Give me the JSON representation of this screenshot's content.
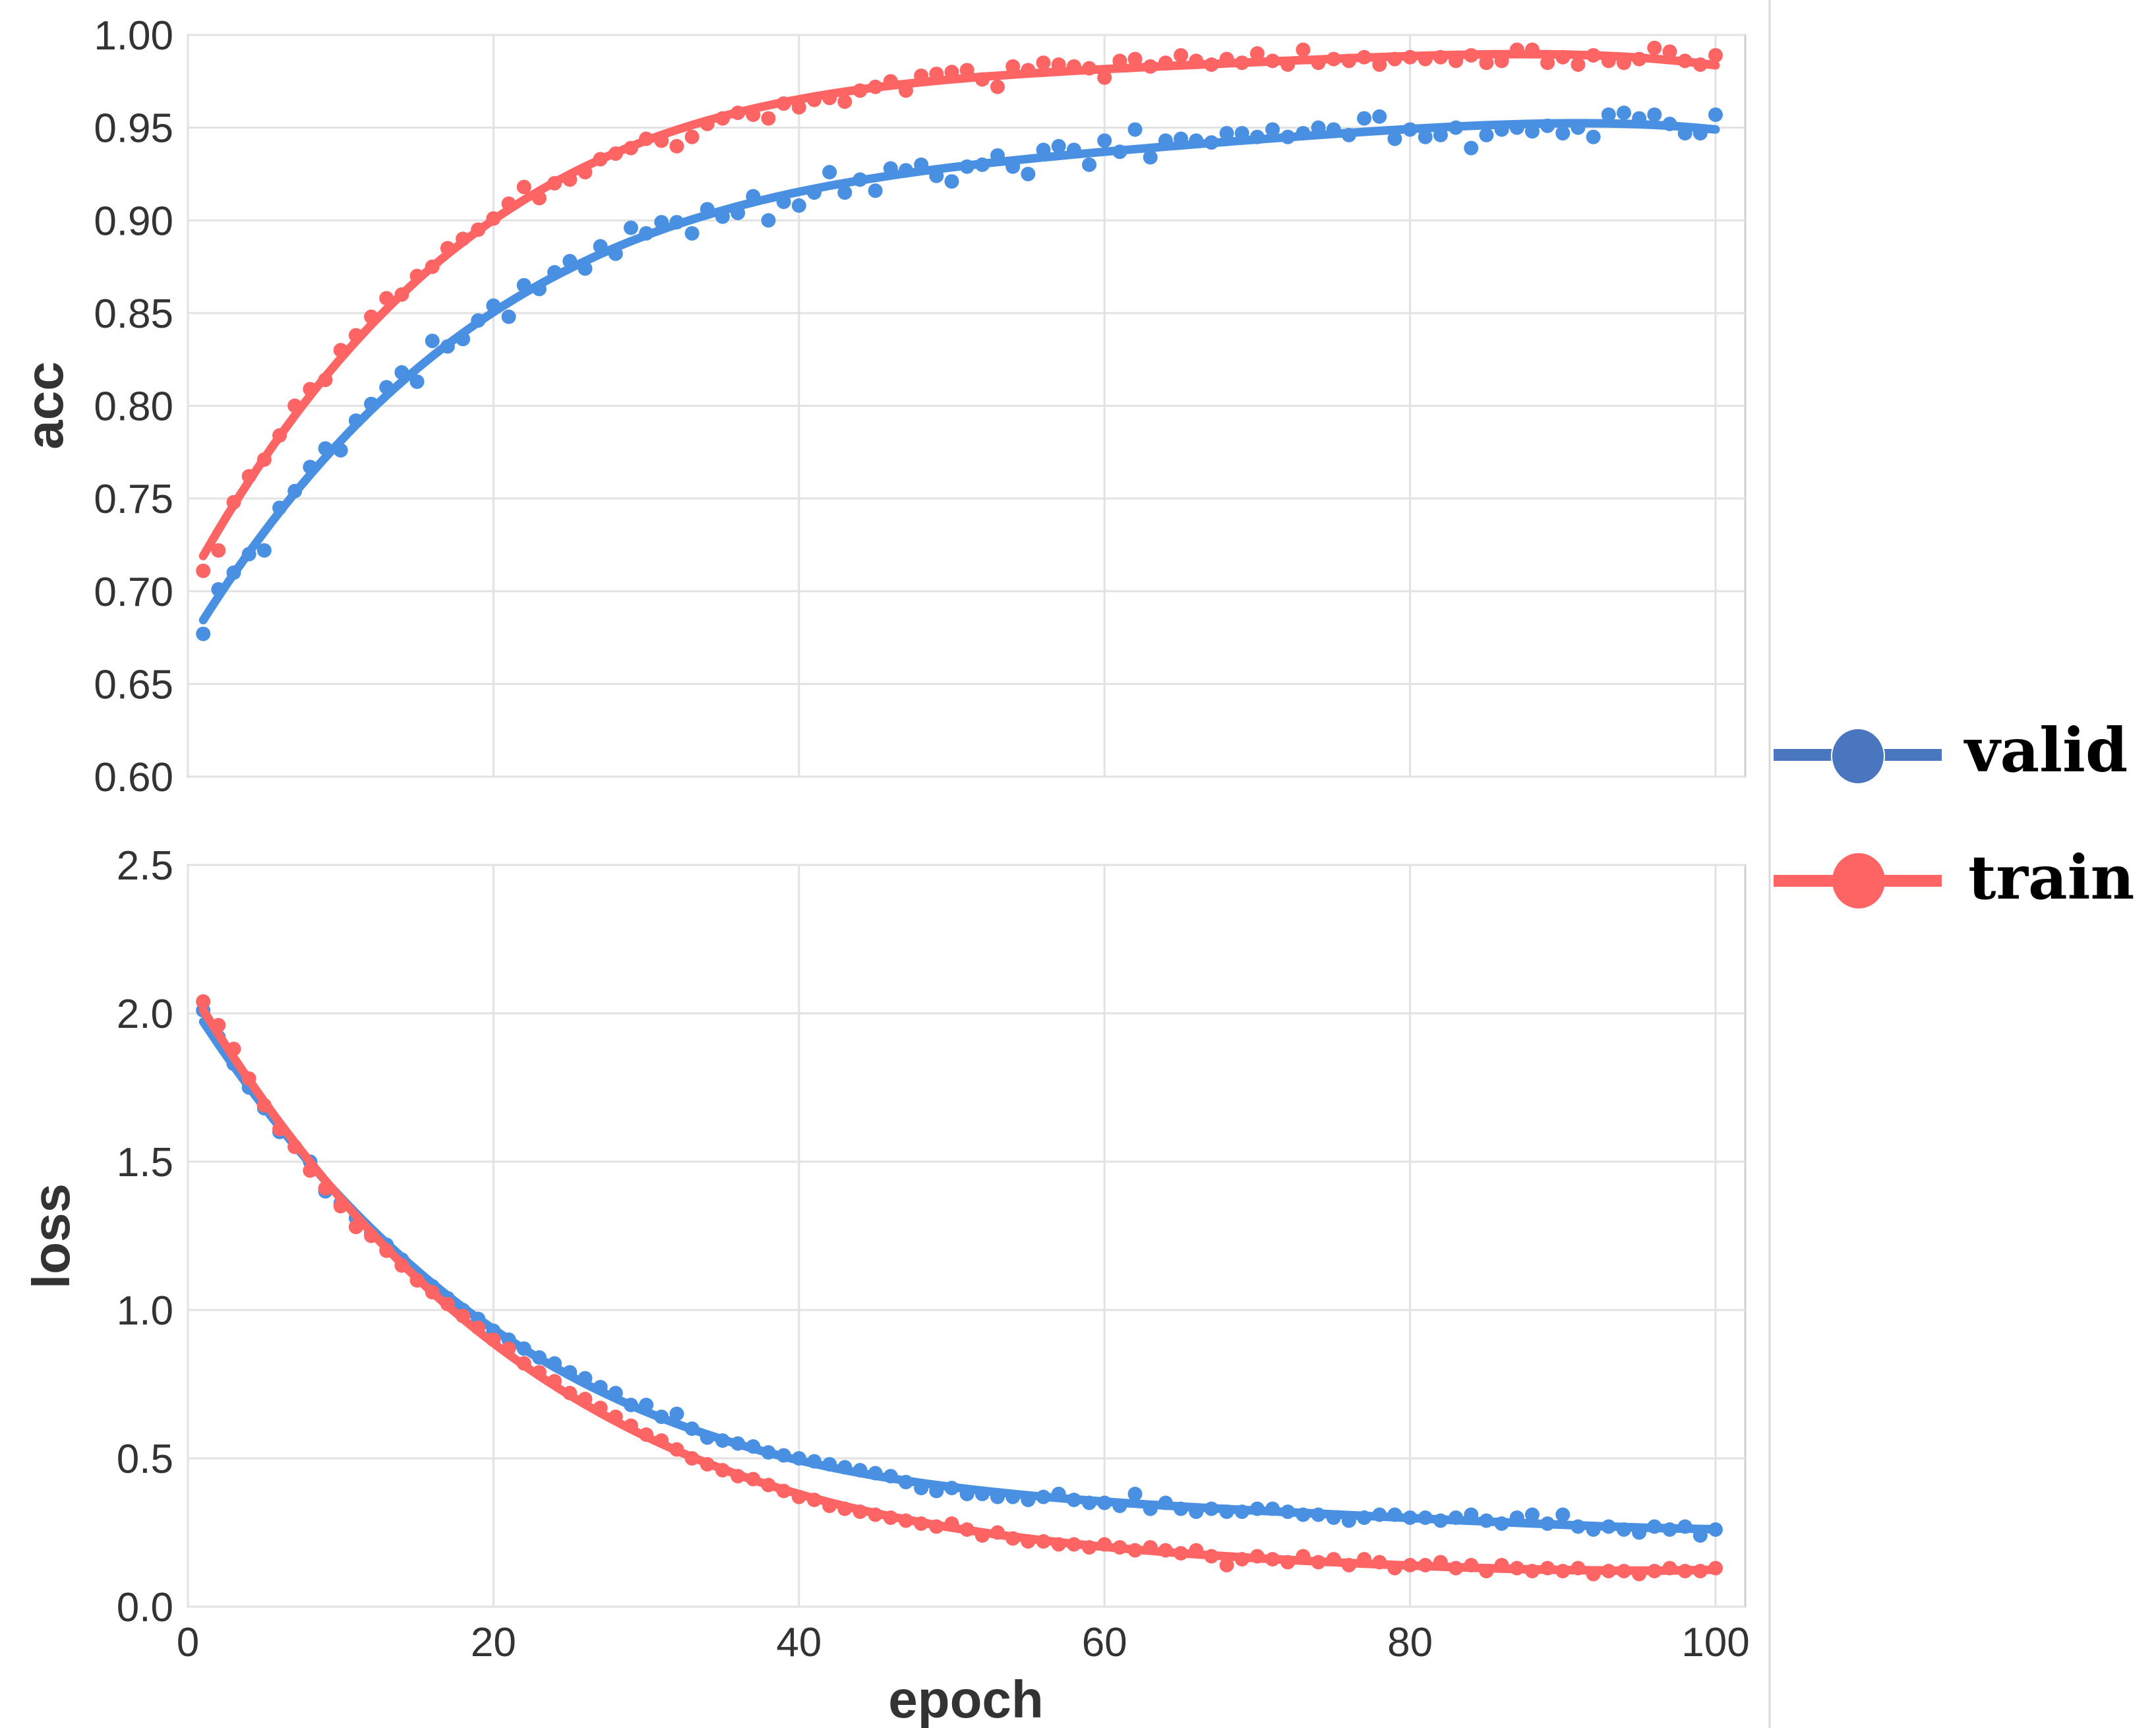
{
  "chart_data": [
    {
      "type": "scatter",
      "panel": "top",
      "title": "",
      "xlabel": "",
      "ylabel": "acc",
      "xlim": [
        0,
        100
      ],
      "ylim": [
        0.6,
        1.0
      ],
      "xticks": [
        "0",
        "20",
        "40",
        "60",
        "80",
        "100"
      ],
      "yticks": [
        "0.60",
        "0.65",
        "0.70",
        "0.75",
        "0.80",
        "0.85",
        "0.90",
        "0.95",
        "1.00"
      ],
      "grid": true,
      "trendline": "polynomial fit per series",
      "series": [
        {
          "name": "valid",
          "color": "#4a90e2",
          "values": [
            0.677,
            0.701,
            0.71,
            0.72,
            0.722,
            0.745,
            0.754,
            0.767,
            0.777,
            0.776,
            0.792,
            0.801,
            0.81,
            0.818,
            0.813,
            0.835,
            0.832,
            0.836,
            0.846,
            0.854,
            0.848,
            0.865,
            0.863,
            0.872,
            0.878,
            0.874,
            0.886,
            0.882,
            0.896,
            0.893,
            0.899,
            0.899,
            0.893,
            0.906,
            0.902,
            0.904,
            0.913,
            0.9,
            0.91,
            0.908,
            0.915,
            0.926,
            0.915,
            0.922,
            0.916,
            0.928,
            0.927,
            0.93,
            0.924,
            0.921,
            0.929,
            0.93,
            0.935,
            0.929,
            0.925,
            0.938,
            0.94,
            0.938,
            0.93,
            0.943,
            0.937,
            0.949,
            0.934,
            0.943,
            0.944,
            0.943,
            0.942,
            0.947,
            0.947,
            0.945,
            0.949,
            0.945,
            0.947,
            0.95,
            0.949,
            0.946,
            0.955,
            0.956,
            0.944,
            0.949,
            0.945,
            0.946,
            0.95,
            0.939,
            0.946,
            0.949,
            0.95,
            0.948,
            0.951,
            0.947,
            0.95,
            0.945,
            0.957,
            0.958,
            0.955,
            0.957,
            0.952,
            0.947,
            0.947,
            0.957
          ]
        },
        {
          "name": "train",
          "color": "#fd6464",
          "values": [
            0.711,
            0.722,
            0.748,
            0.762,
            0.771,
            0.784,
            0.8,
            0.809,
            0.814,
            0.83,
            0.838,
            0.848,
            0.858,
            0.86,
            0.87,
            0.875,
            0.885,
            0.89,
            0.895,
            0.901,
            0.909,
            0.918,
            0.912,
            0.92,
            0.922,
            0.926,
            0.933,
            0.936,
            0.939,
            0.944,
            0.943,
            0.94,
            0.945,
            0.952,
            0.955,
            0.958,
            0.957,
            0.955,
            0.963,
            0.961,
            0.965,
            0.966,
            0.964,
            0.97,
            0.972,
            0.975,
            0.97,
            0.978,
            0.979,
            0.98,
            0.981,
            0.976,
            0.972,
            0.983,
            0.981,
            0.985,
            0.984,
            0.983,
            0.982,
            0.977,
            0.986,
            0.987,
            0.983,
            0.985,
            0.989,
            0.986,
            0.984,
            0.987,
            0.985,
            0.99,
            0.986,
            0.984,
            0.992,
            0.985,
            0.987,
            0.986,
            0.988,
            0.984,
            0.987,
            0.988,
            0.987,
            0.988,
            0.986,
            0.989,
            0.985,
            0.986,
            0.992,
            0.992,
            0.985,
            0.988,
            0.984,
            0.989,
            0.986,
            0.985,
            0.987,
            0.993,
            0.991,
            0.986,
            0.984,
            0.989
          ]
        }
      ]
    },
    {
      "type": "scatter",
      "panel": "bottom",
      "title": "",
      "xlabel": "epoch",
      "ylabel": "loss",
      "xlim": [
        0,
        100
      ],
      "ylim": [
        0.0,
        2.5
      ],
      "xticks": [
        "0",
        "20",
        "40",
        "60",
        "80",
        "100"
      ],
      "yticks": [
        "0.0",
        "0.5",
        "1.0",
        "1.5",
        "2.0",
        "2.5"
      ],
      "grid": true,
      "trendline": "polynomial fit per series",
      "series": [
        {
          "name": "valid",
          "color": "#4a90e2",
          "values": [
            2.01,
            1.92,
            1.83,
            1.75,
            1.68,
            1.6,
            1.55,
            1.5,
            1.4,
            1.36,
            1.31,
            1.26,
            1.22,
            1.17,
            1.12,
            1.08,
            1.04,
            1.0,
            0.97,
            0.93,
            0.9,
            0.87,
            0.84,
            0.82,
            0.79,
            0.77,
            0.74,
            0.72,
            0.68,
            0.68,
            0.64,
            0.65,
            0.6,
            0.57,
            0.56,
            0.55,
            0.54,
            0.52,
            0.51,
            0.5,
            0.49,
            0.48,
            0.47,
            0.46,
            0.45,
            0.44,
            0.42,
            0.4,
            0.39,
            0.4,
            0.38,
            0.38,
            0.37,
            0.37,
            0.36,
            0.37,
            0.38,
            0.36,
            0.35,
            0.35,
            0.34,
            0.38,
            0.33,
            0.35,
            0.33,
            0.32,
            0.33,
            0.32,
            0.32,
            0.33,
            0.33,
            0.32,
            0.31,
            0.31,
            0.3,
            0.29,
            0.3,
            0.31,
            0.31,
            0.3,
            0.3,
            0.29,
            0.3,
            0.31,
            0.29,
            0.28,
            0.3,
            0.31,
            0.28,
            0.31,
            0.27,
            0.26,
            0.27,
            0.26,
            0.25,
            0.27,
            0.26,
            0.27,
            0.24,
            0.26
          ]
        },
        {
          "name": "train",
          "color": "#fd6464",
          "values": [
            2.04,
            1.96,
            1.88,
            1.78,
            1.69,
            1.61,
            1.55,
            1.47,
            1.41,
            1.35,
            1.28,
            1.25,
            1.2,
            1.15,
            1.1,
            1.06,
            1.02,
            0.98,
            0.94,
            0.9,
            0.87,
            0.82,
            0.79,
            0.76,
            0.72,
            0.7,
            0.67,
            0.64,
            0.61,
            0.58,
            0.56,
            0.53,
            0.5,
            0.48,
            0.46,
            0.44,
            0.43,
            0.41,
            0.39,
            0.37,
            0.36,
            0.34,
            0.33,
            0.32,
            0.31,
            0.3,
            0.29,
            0.28,
            0.27,
            0.28,
            0.26,
            0.24,
            0.25,
            0.23,
            0.22,
            0.22,
            0.21,
            0.21,
            0.2,
            0.21,
            0.2,
            0.19,
            0.2,
            0.19,
            0.18,
            0.19,
            0.17,
            0.14,
            0.16,
            0.17,
            0.16,
            0.15,
            0.17,
            0.15,
            0.16,
            0.14,
            0.16,
            0.15,
            0.13,
            0.14,
            0.14,
            0.15,
            0.13,
            0.14,
            0.12,
            0.14,
            0.13,
            0.12,
            0.13,
            0.12,
            0.13,
            0.11,
            0.12,
            0.12,
            0.11,
            0.12,
            0.13,
            0.12,
            0.12,
            0.13
          ]
        }
      ]
    }
  ],
  "legend": {
    "placement": "right",
    "items": [
      {
        "label": "valid",
        "color": "#4a76c0"
      },
      {
        "label": "train",
        "color": "#fd6464"
      }
    ]
  }
}
